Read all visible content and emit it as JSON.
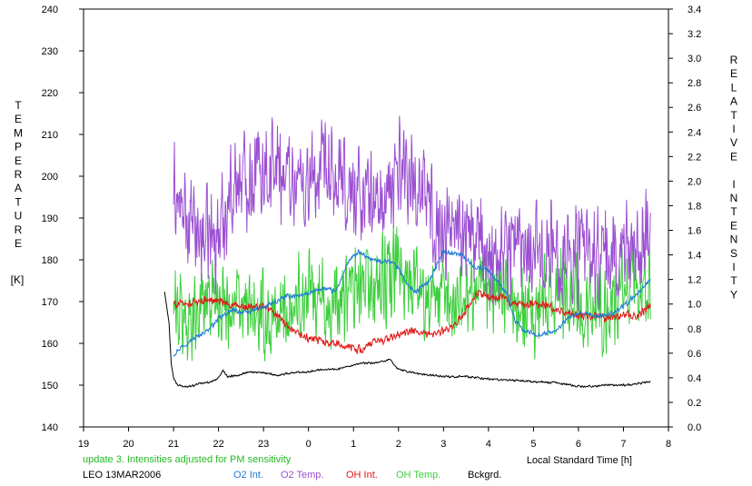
{
  "chart_data": {
    "type": "line",
    "title": "",
    "xlabel": "Local Standard Time [h]",
    "ylabel_left_letters": [
      "T",
      "E",
      "M",
      "P",
      "E",
      "R",
      "A",
      "T",
      "U",
      "R",
      "E"
    ],
    "ylabel_left_unit": "[K]",
    "ylabel_right_words": [
      [
        "R",
        "E",
        "L",
        "A",
        "T",
        "I",
        "V",
        "E"
      ],
      [
        "I",
        "N",
        "T",
        "E",
        "N",
        "S",
        "I",
        "T",
        "Y"
      ]
    ],
    "xlim": [
      19,
      32
    ],
    "xticks": [
      19,
      20,
      21,
      22,
      23,
      24,
      25,
      26,
      27,
      28,
      29,
      30,
      31,
      32
    ],
    "xtick_labels": [
      "19",
      "20",
      "21",
      "22",
      "23",
      "0",
      "1",
      "2",
      "3",
      "4",
      "5",
      "6",
      "7",
      "8"
    ],
    "ylim_left": [
      140,
      240
    ],
    "yticks_left": [
      140,
      150,
      160,
      170,
      180,
      190,
      200,
      210,
      220,
      230,
      240
    ],
    "ylim_right": [
      0,
      3.4
    ],
    "yticks_right": [
      "0.0",
      "0.2",
      "0.4",
      "0.6",
      "0.8",
      "1.0",
      "1.2",
      "1.4",
      "1.6",
      "1.8",
      "2.0",
      "2.2",
      "2.4",
      "2.6",
      "2.8",
      "3.0",
      "3.2",
      "3.4"
    ],
    "grid": false,
    "legend": "bottom",
    "note": "update 3. Intensities adjusted for PM sensitivity",
    "station": "LEO 13MAR2006",
    "series": [
      {
        "name": "O2 Int.",
        "axis": "right",
        "color": "#1e7ad6",
        "noise": 0.015,
        "x": [
          21.0,
          21.2,
          21.5,
          21.8,
          22.0,
          22.3,
          22.6,
          23.0,
          23.5,
          24.0,
          24.3,
          24.6,
          24.9,
          25.1,
          25.5,
          25.8,
          26.0,
          26.2,
          26.4,
          26.7,
          27.0,
          27.4,
          27.7,
          28.0,
          28.2,
          28.4,
          28.6,
          28.8,
          29.1,
          29.5,
          29.8,
          30.1,
          30.4,
          30.7,
          31.0,
          31.2,
          31.4,
          31.6
        ],
        "y": [
          0.59,
          0.66,
          0.73,
          0.8,
          0.88,
          0.95,
          0.93,
          0.97,
          1.06,
          1.08,
          1.13,
          1.1,
          1.35,
          1.42,
          1.35,
          1.35,
          1.3,
          1.15,
          1.1,
          1.2,
          1.43,
          1.4,
          1.3,
          1.28,
          1.18,
          1.08,
          0.86,
          0.78,
          0.75,
          0.78,
          0.9,
          0.92,
          0.9,
          0.92,
          0.98,
          1.05,
          1.12,
          1.2
        ]
      },
      {
        "name": "O2 Temp.",
        "axis": "left",
        "color": "#9b4fd1",
        "noise": 9,
        "x": [
          21.0,
          21.2,
          21.5,
          21.8,
          22.0,
          22.3,
          22.6,
          23.0,
          23.3,
          23.6,
          24.0,
          24.3,
          24.6,
          24.9,
          25.2,
          25.5,
          25.8,
          26.0,
          26.2,
          26.4,
          26.7,
          27.0,
          27.3,
          27.6,
          28.0,
          28.3,
          28.6,
          28.9,
          29.2,
          29.5,
          29.8,
          30.1,
          30.4,
          30.7,
          31.0,
          31.3,
          31.6
        ],
        "y": [
          196,
          190,
          186,
          185,
          186,
          198,
          200,
          203,
          202,
          200,
          198,
          200,
          198,
          196,
          196,
          194,
          193,
          204,
          202,
          198,
          193,
          186,
          190,
          185,
          182,
          183,
          184,
          185,
          182,
          182,
          182,
          181,
          181,
          180,
          183,
          185,
          187
        ]
      },
      {
        "name": "OH Int.",
        "axis": "right",
        "color": "#e01818",
        "noise": 0.025,
        "x": [
          21.0,
          21.3,
          21.6,
          21.9,
          22.2,
          22.6,
          23.0,
          23.3,
          23.6,
          24.0,
          24.3,
          24.6,
          24.9,
          25.2,
          25.5,
          25.8,
          26.0,
          26.3,
          26.6,
          26.9,
          27.2,
          27.5,
          27.8,
          28.0,
          28.3,
          28.6,
          28.9,
          29.2,
          29.5,
          29.8,
          30.1,
          30.4,
          30.7,
          31.0,
          31.3,
          31.6
        ],
        "y": [
          1.0,
          1.0,
          1.03,
          1.03,
          1.0,
          0.97,
          0.98,
          0.92,
          0.78,
          0.72,
          0.7,
          0.68,
          0.65,
          0.63,
          0.7,
          0.72,
          0.75,
          0.78,
          0.75,
          0.77,
          0.8,
          0.95,
          1.1,
          1.05,
          1.05,
          1.0,
          1.0,
          1.0,
          0.95,
          0.92,
          0.9,
          0.9,
          0.88,
          0.92,
          0.9,
          1.0
        ]
      },
      {
        "name": "OH Temp.",
        "axis": "left",
        "color": "#3ccf3c",
        "noise": 8,
        "x": [
          21.0,
          21.3,
          21.6,
          21.9,
          22.2,
          22.5,
          22.8,
          23.1,
          23.4,
          23.7,
          24.0,
          24.3,
          24.6,
          24.9,
          25.2,
          25.5,
          25.8,
          26.0,
          26.3,
          26.6,
          26.9,
          27.2,
          27.5,
          27.8,
          28.1,
          28.4,
          28.7,
          29.0,
          29.3,
          29.6,
          29.9,
          30.2,
          30.5,
          30.8,
          31.1,
          31.4,
          31.6
        ],
        "y": [
          168,
          165,
          170,
          172,
          170,
          168,
          166,
          165,
          167,
          170,
          172,
          170,
          168,
          172,
          173,
          174,
          175,
          178,
          175,
          172,
          170,
          170,
          172,
          175,
          174,
          172,
          170,
          168,
          170,
          172,
          171,
          170,
          168,
          170,
          172,
          173,
          172
        ]
      },
      {
        "name": "Bckgrd.",
        "axis": "right",
        "color": "#000000",
        "noise": 0.006,
        "x": [
          20.8,
          20.9,
          20.95,
          21.0,
          21.05,
          21.1,
          21.2,
          21.4,
          21.6,
          21.8,
          22.0,
          22.1,
          22.2,
          22.4,
          22.7,
          23.0,
          23.3,
          23.6,
          24.0,
          24.3,
          24.6,
          24.9,
          25.2,
          25.5,
          25.8,
          26.0,
          26.2,
          26.5,
          27.0,
          27.5,
          28.0,
          28.5,
          29.0,
          29.5,
          30.0,
          30.3,
          30.6,
          31.0,
          31.3,
          31.6
        ],
        "y": [
          1.1,
          0.85,
          0.5,
          0.4,
          0.36,
          0.34,
          0.33,
          0.33,
          0.36,
          0.36,
          0.4,
          0.46,
          0.41,
          0.42,
          0.45,
          0.44,
          0.42,
          0.44,
          0.45,
          0.47,
          0.47,
          0.49,
          0.52,
          0.52,
          0.55,
          0.47,
          0.45,
          0.43,
          0.41,
          0.41,
          0.39,
          0.38,
          0.37,
          0.36,
          0.33,
          0.33,
          0.34,
          0.34,
          0.35,
          0.37
        ]
      }
    ]
  },
  "legend_labels": [
    "O2 Int.",
    "O2 Temp.",
    "OH Int.",
    "OH Temp.",
    "Bckgrd."
  ]
}
